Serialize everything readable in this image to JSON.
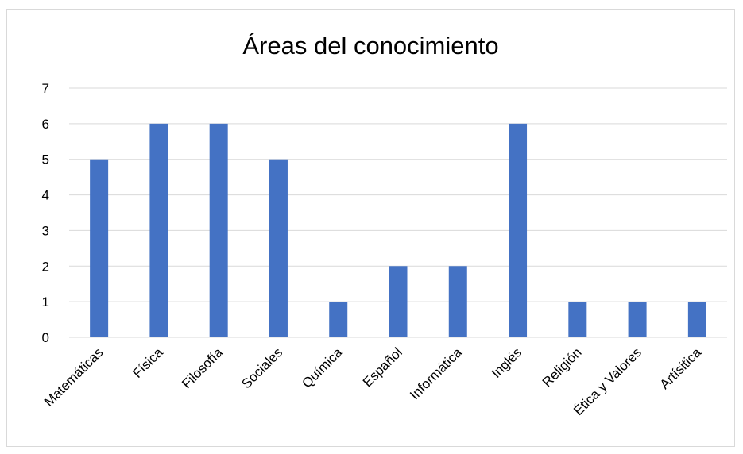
{
  "chart_data": {
    "type": "bar",
    "title": "Áreas del conocimiento",
    "categories": [
      "Matemáticas",
      "Física",
      "Filosofía",
      "Sociales",
      "Química",
      "Español",
      "Informática",
      "Inglés",
      "Religión",
      "Ética y Valores",
      "Artísitica"
    ],
    "values": [
      5,
      6,
      6,
      5,
      1,
      2,
      2,
      6,
      1,
      1,
      1
    ],
    "xlabel": "",
    "ylabel": "",
    "ylim": [
      0,
      7
    ],
    "yticks": [
      0,
      1,
      2,
      3,
      4,
      5,
      6,
      7
    ],
    "grid": true,
    "bar_color": "#4472C4",
    "grid_color": "#d9d9d9"
  }
}
